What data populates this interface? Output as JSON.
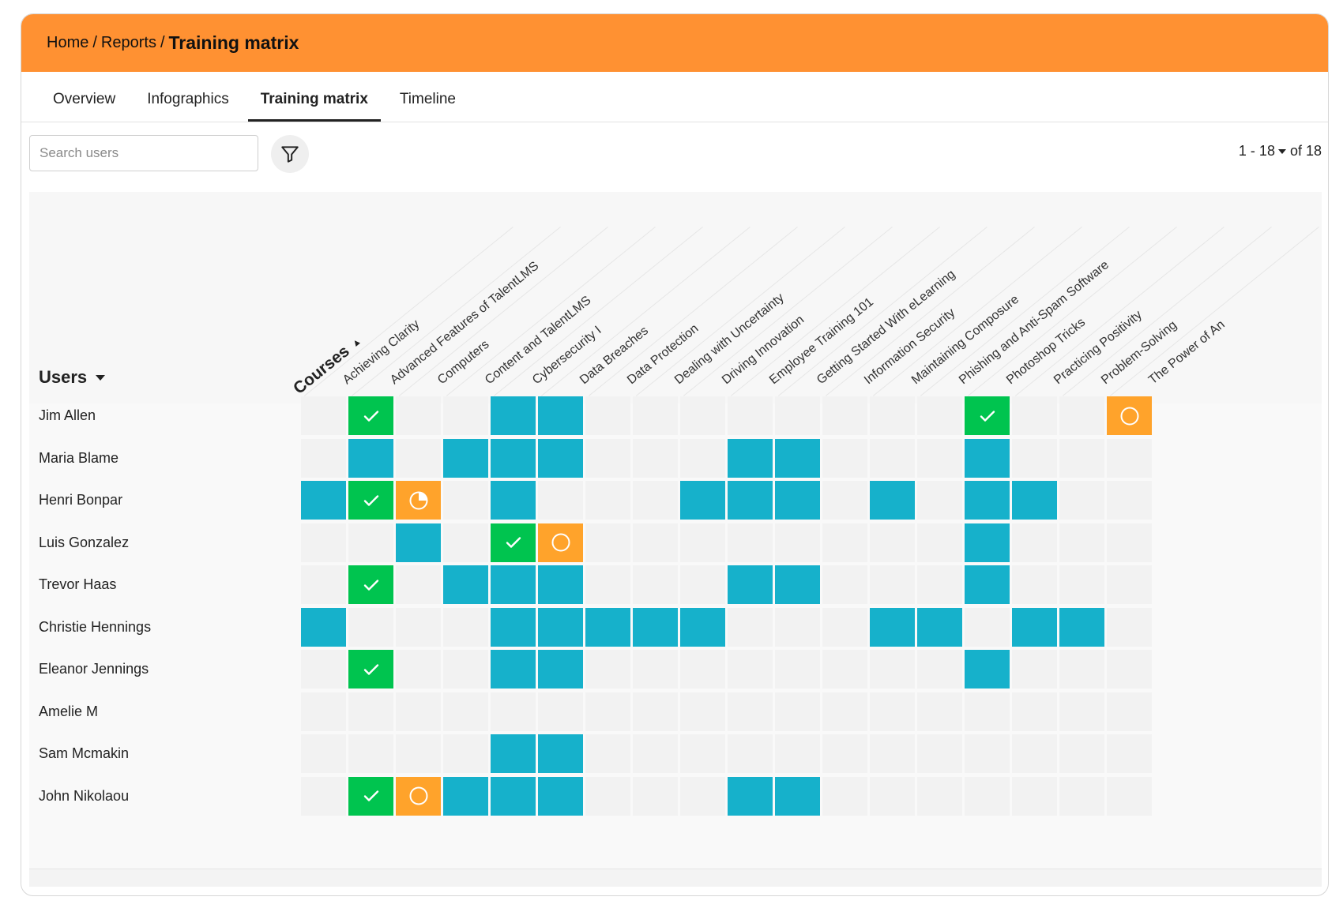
{
  "breadcrumb": {
    "home": "Home",
    "separator": "/",
    "reports": "Reports",
    "current": "Training matrix"
  },
  "tabs": [
    {
      "label": "Overview",
      "active": false
    },
    {
      "label": "Infographics",
      "active": false
    },
    {
      "label": "Training matrix",
      "active": true
    },
    {
      "label": "Timeline",
      "active": false
    }
  ],
  "search": {
    "placeholder": "Search users",
    "value": ""
  },
  "filter": {
    "icon": "filter-icon"
  },
  "pagination": {
    "range": "1 - 18",
    "of_text": "of 18"
  },
  "matrix": {
    "users_header": "Users",
    "courses_header": "Courses",
    "courses": [
      "Achieving Clarity",
      "Advanced Features of TalentLMS",
      "Computers",
      "Content and TalentLMS",
      "Cybersecurity I",
      "Data Breaches",
      "Data Protection",
      "Dealing with Uncertainty",
      "Driving Innovation",
      "Employee Training 101",
      "Getting Started With eLearning",
      "Information Security",
      "Maintaining Composure",
      "Phishing and Anti-Spam Software",
      "Photoshop Tricks",
      "Practicing Positivity",
      "Problem-Solving",
      "The Power of An"
    ],
    "status_colors": {
      "enrolled": "#16b1cb",
      "completed": "#00c44f",
      "in_progress": "#ffa32b",
      "not_started": "#ffa32b",
      "empty": "#f2f2f2"
    },
    "status_icons": {
      "completed": "checkmark-icon",
      "in_progress": "pie-progress-icon",
      "not_started": "circle-icon"
    },
    "users": [
      {
        "name": "Jim Allen",
        "statuses": [
          "empty",
          "completed",
          "empty",
          "empty",
          "enrolled",
          "enrolled",
          "empty",
          "empty",
          "empty",
          "empty",
          "empty",
          "empty",
          "empty",
          "empty",
          "completed",
          "empty",
          "empty",
          "not_started"
        ]
      },
      {
        "name": "Maria Blame",
        "statuses": [
          "empty",
          "enrolled",
          "empty",
          "enrolled",
          "enrolled",
          "enrolled",
          "empty",
          "empty",
          "empty",
          "enrolled",
          "enrolled",
          "empty",
          "empty",
          "empty",
          "enrolled",
          "empty",
          "empty",
          "empty"
        ]
      },
      {
        "name": "Henri Bonpar",
        "statuses": [
          "enrolled",
          "completed",
          "in_progress",
          "empty",
          "enrolled",
          "empty",
          "empty",
          "empty",
          "enrolled",
          "enrolled",
          "enrolled",
          "empty",
          "enrolled",
          "empty",
          "enrolled",
          "enrolled",
          "empty",
          "empty"
        ]
      },
      {
        "name": "Luis Gonzalez",
        "statuses": [
          "empty",
          "empty",
          "enrolled",
          "empty",
          "completed",
          "not_started",
          "empty",
          "empty",
          "empty",
          "empty",
          "empty",
          "empty",
          "empty",
          "empty",
          "enrolled",
          "empty",
          "empty",
          "empty"
        ]
      },
      {
        "name": "Trevor Haas",
        "statuses": [
          "empty",
          "completed",
          "empty",
          "enrolled",
          "enrolled",
          "enrolled",
          "empty",
          "empty",
          "empty",
          "enrolled",
          "enrolled",
          "empty",
          "empty",
          "empty",
          "enrolled",
          "empty",
          "empty",
          "empty"
        ]
      },
      {
        "name": "Christie Hennings",
        "statuses": [
          "enrolled",
          "empty",
          "empty",
          "empty",
          "enrolled",
          "enrolled",
          "enrolled",
          "enrolled",
          "enrolled",
          "empty",
          "empty",
          "empty",
          "enrolled",
          "enrolled",
          "empty",
          "enrolled",
          "enrolled",
          "empty"
        ]
      },
      {
        "name": "Eleanor Jennings",
        "statuses": [
          "empty",
          "completed",
          "empty",
          "empty",
          "enrolled",
          "enrolled",
          "empty",
          "empty",
          "empty",
          "empty",
          "empty",
          "empty",
          "empty",
          "empty",
          "enrolled",
          "empty",
          "empty",
          "empty"
        ]
      },
      {
        "name": "Amelie M",
        "statuses": [
          "empty",
          "empty",
          "empty",
          "empty",
          "empty",
          "empty",
          "empty",
          "empty",
          "empty",
          "empty",
          "empty",
          "empty",
          "empty",
          "empty",
          "empty",
          "empty",
          "empty",
          "empty"
        ]
      },
      {
        "name": "Sam Mcmakin",
        "statuses": [
          "empty",
          "empty",
          "empty",
          "empty",
          "enrolled",
          "enrolled",
          "empty",
          "empty",
          "empty",
          "empty",
          "empty",
          "empty",
          "empty",
          "empty",
          "empty",
          "empty",
          "empty",
          "empty"
        ]
      },
      {
        "name": "John Nikolaou",
        "statuses": [
          "empty",
          "completed",
          "not_started",
          "enrolled",
          "enrolled",
          "enrolled",
          "empty",
          "empty",
          "empty",
          "enrolled",
          "enrolled",
          "empty",
          "empty",
          "empty",
          "empty",
          "empty",
          "empty",
          "empty"
        ]
      }
    ]
  }
}
